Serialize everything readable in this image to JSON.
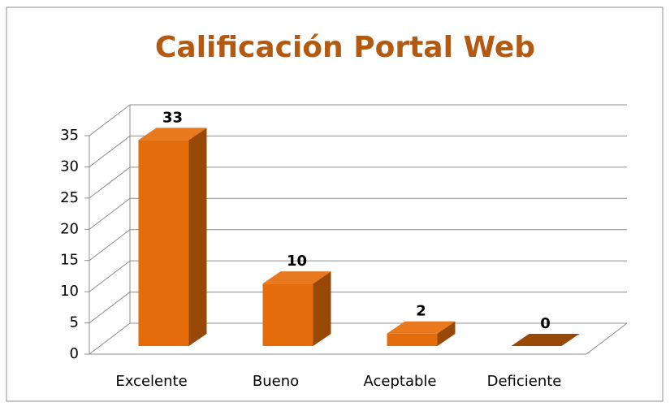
{
  "chart_data": {
    "type": "bar",
    "title": "Calificación  Portal Web",
    "categories": [
      "Excelente",
      "Bueno",
      "Aceptable",
      "Deficiente"
    ],
    "values": [
      33,
      10,
      2,
      0
    ],
    "color": "#e46c0a",
    "side_color": "#984807",
    "title_color": "#b35a12",
    "ylim": [
      0,
      35
    ],
    "yticks": [
      0,
      5,
      10,
      15,
      20,
      25,
      30,
      35
    ],
    "grid": true
  }
}
